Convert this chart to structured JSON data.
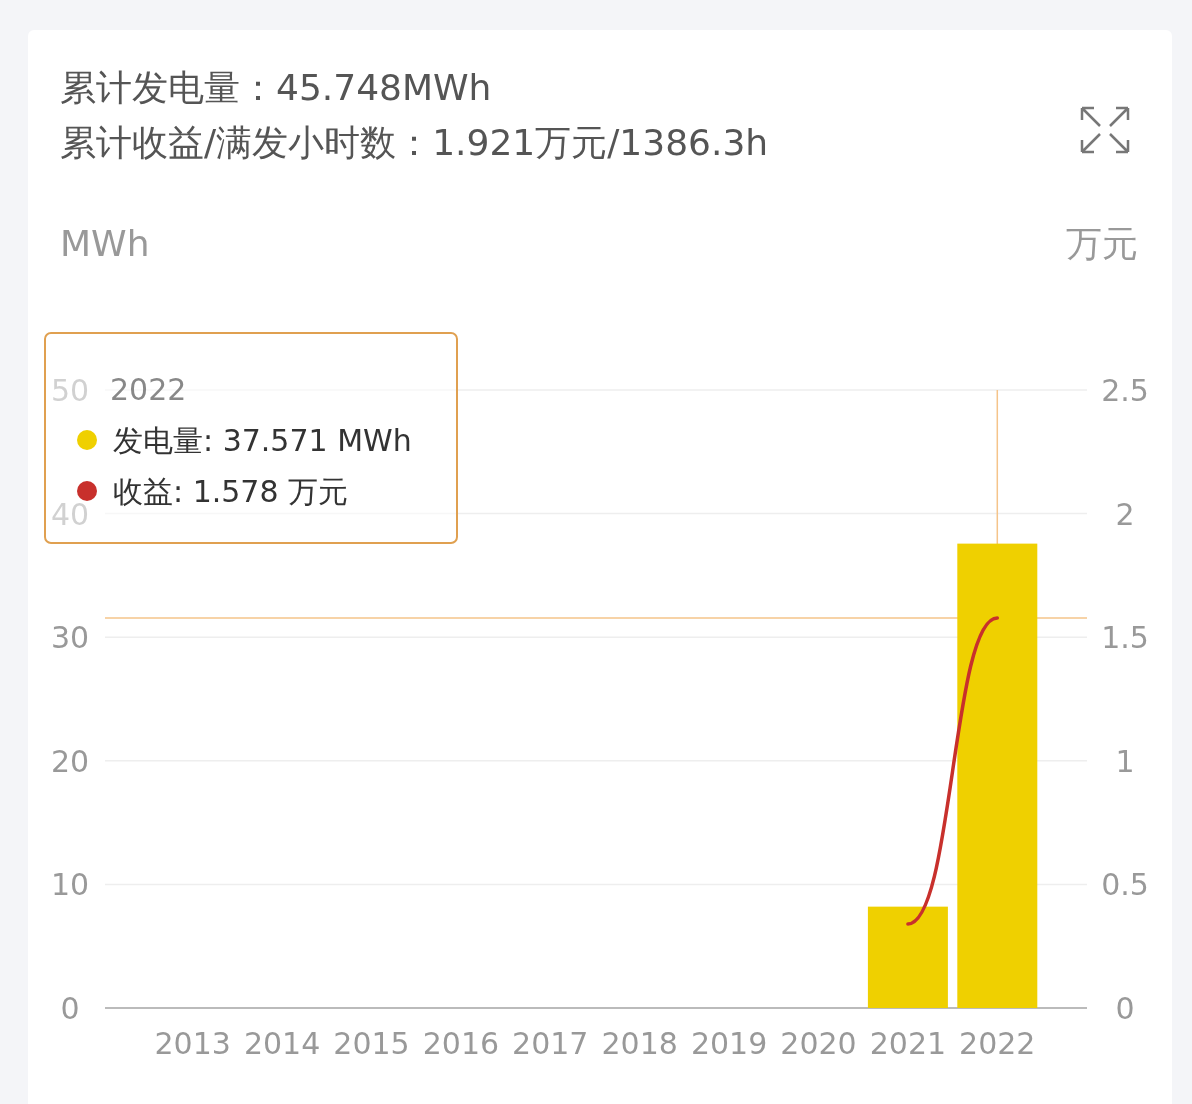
{
  "chart_data": {
    "type": "bar",
    "title": "累计发电量：45.748MWh",
    "subtitle": "累计收益/满发小时数：1.921万元/1386.3h",
    "ylabel": "MWh",
    "y2label": "万元",
    "categories": [
      "2013",
      "2014",
      "2015",
      "2016",
      "2017",
      "2018",
      "2019",
      "2020",
      "2021",
      "2022"
    ],
    "series": [
      {
        "color": "#efd000",
        "values": [
          null,
          null,
          null,
          null,
          null,
          null,
          null,
          null,
          8.2,
          37.571
        ]
      },
      {
        "type": "line",
        "axis": "y2",
        "color": "#c8302c",
        "values": [
          null,
          null,
          null,
          null,
          null,
          null,
          null,
          null,
          0.34,
          1.578
        ]
      }
    ],
    "annotations": [
      "2022",
      "发电量: 37.571 MWh",
      "收益: 1.578 万元"
    ],
    "ylim": [
      0,
      50
    ],
    "yticks": [
      0,
      10,
      20,
      30,
      40,
      50
    ],
    "y2lim": [
      0,
      2.5
    ],
    "y2ticks": [
      0,
      0.5,
      1,
      1.5,
      2,
      2.5
    ],
    "ref_lines": [
      {
        "axis": "x",
        "value": "2022",
        "color": "#f5c48a"
      },
      {
        "axis": "y2",
        "value": 1.578,
        "color": "#f5c48a"
      }
    ],
    "grid": "y",
    "marker": "none",
    "line_style": "solid"
  }
}
